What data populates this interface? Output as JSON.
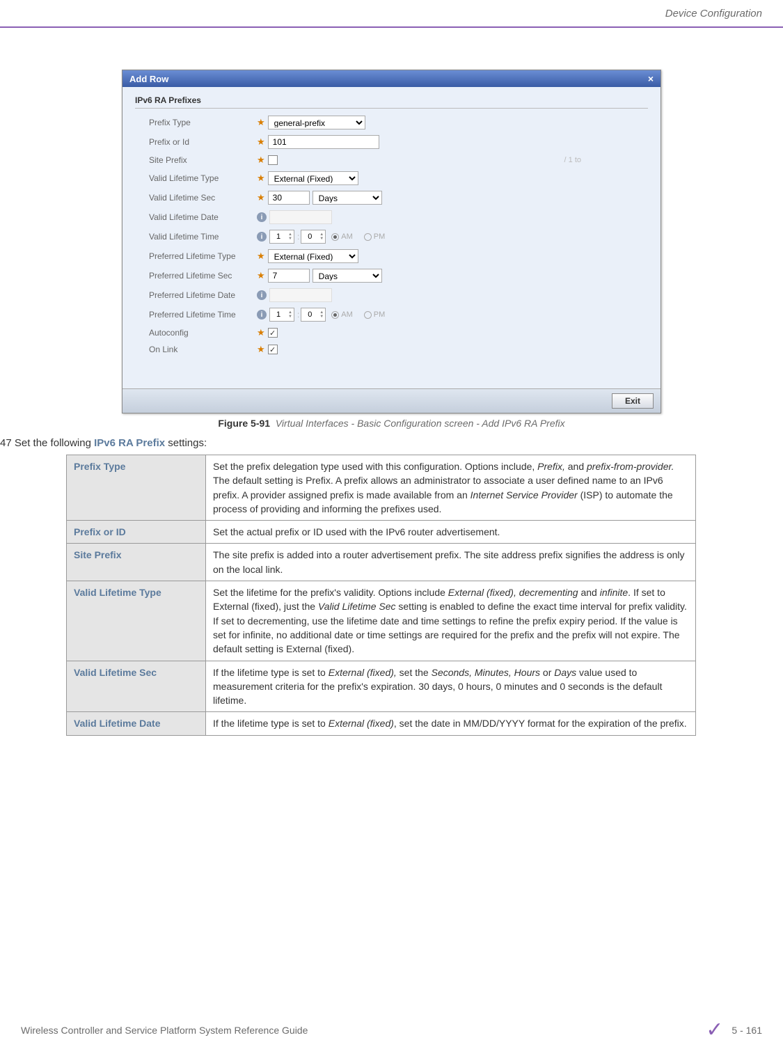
{
  "header": {
    "title": "Device Configuration"
  },
  "dialog": {
    "title": "Add Row",
    "section_label": "IPv6 RA Prefixes",
    "close_label": "×",
    "rows": {
      "prefix_type": {
        "label": "Prefix Type",
        "value": "general-prefix"
      },
      "prefix_or_id": {
        "label": "Prefix or Id",
        "value": "101"
      },
      "site_prefix": {
        "label": "Site Prefix",
        "suffix": "/ 1 to"
      },
      "valid_lifetime_type": {
        "label": "Valid Lifetime Type",
        "value": "External (Fixed)"
      },
      "valid_lifetime_sec": {
        "label": "Valid Lifetime Sec",
        "value": "30",
        "unit": "Days"
      },
      "valid_lifetime_date": {
        "label": "Valid Lifetime Date"
      },
      "valid_lifetime_time": {
        "label": "Valid Lifetime Time",
        "h": "1",
        "m": "0",
        "am": "AM",
        "pm": "PM"
      },
      "preferred_lifetime_type": {
        "label": "Preferred Lifetime Type",
        "value": "External (Fixed)"
      },
      "preferred_lifetime_sec": {
        "label": "Preferred Lifetime Sec",
        "value": "7",
        "unit": "Days"
      },
      "preferred_lifetime_date": {
        "label": "Preferred Lifetime Date"
      },
      "preferred_lifetime_time": {
        "label": "Preferred Lifetime Time",
        "h": "1",
        "m": "0",
        "am": "AM",
        "pm": "PM"
      },
      "autoconfig": {
        "label": "Autoconfig"
      },
      "on_link": {
        "label": "On Link"
      }
    },
    "exit": "Exit"
  },
  "figure": {
    "number": "Figure 5-91",
    "caption": "Virtual Interfaces - Basic Configuration screen - Add IPv6 RA Prefix"
  },
  "step": {
    "num": "47",
    "pre": "Set the following ",
    "term": "IPv6 RA Prefix",
    "post": " settings:"
  },
  "table": {
    "rows": [
      {
        "label": "Prefix Type",
        "desc": "Set the prefix delegation type used with this configuration. Options include, <em>Prefix,</em> and <em>prefix-from-provider.</em> The default setting is Prefix. A prefix allows an administrator to associate a user defined name to an IPv6 prefix. A provider assigned prefix is made available from an <em>Internet Service Provider</em> (ISP) to automate the process of providing and informing the prefixes used."
      },
      {
        "label": "Prefix or ID",
        "desc": "Set the actual prefix or ID used with the IPv6 router advertisement."
      },
      {
        "label": "Site Prefix",
        "desc": "The site prefix is added into a router advertisement prefix. The site address prefix signifies the address is only on the local link."
      },
      {
        "label": "Valid Lifetime Type",
        "desc": "Set the lifetime for the prefix's validity. Options include <em>External (fixed), decrementing</em> and <em>infinite</em>. If set to External (fixed), just the <em>Valid Lifetime Sec</em> setting is enabled to define the exact time interval for prefix validity. If set to decrementing, use the lifetime date and time settings to refine the prefix expiry period. If the value is set for infinite, no additional date or time settings are required for the prefix and the prefix will not expire. The default setting is External (fixed)."
      },
      {
        "label": "Valid Lifetime Sec",
        "desc": "If the lifetime type is set to <em>External (fixed),</em> set the <em>Seconds, Minutes, Hours</em> or <em>Days</em> value used to measurement criteria for the prefix's expiration. 30 days, 0 hours, 0 minutes and 0 seconds is the default lifetime."
      },
      {
        "label": "Valid Lifetime Date",
        "desc": "If the lifetime type is set to <em>External (fixed)</em>, set the date in MM/DD/YYYY format for the expiration of the prefix."
      }
    ]
  },
  "footer": {
    "left": "Wireless Controller and Service Platform System Reference Guide",
    "right": "5 - 161"
  }
}
